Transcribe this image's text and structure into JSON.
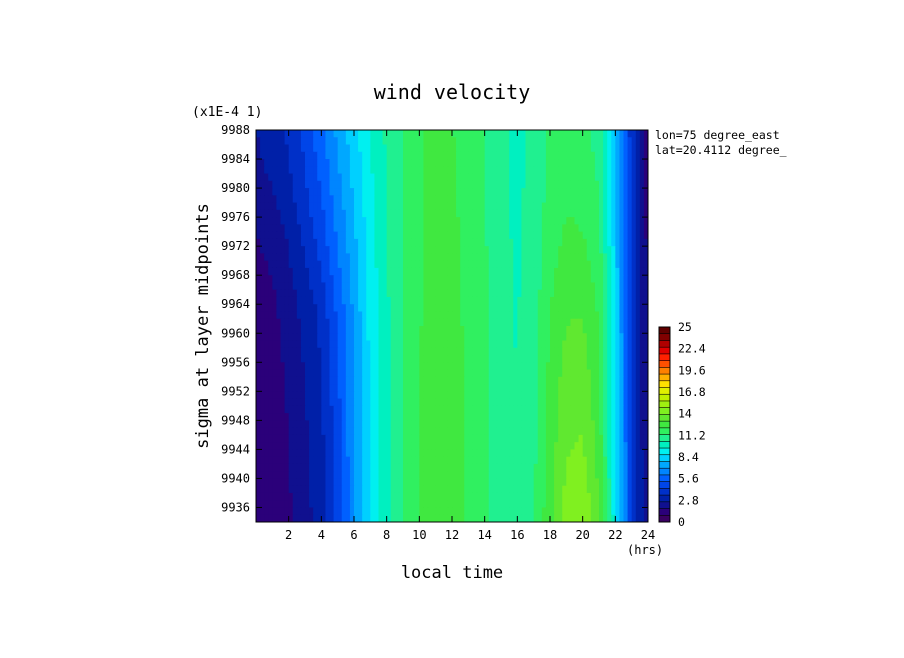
{
  "chart_data": {
    "type": "heatmap",
    "title": "wind velocity",
    "xlabel": "local time",
    "ylabel": "sigma at layer midpoints",
    "x_unit": "(hrs)",
    "y_scale_note": "(x1E-4 1)",
    "annotations": [
      "lon=75 degree_east",
      "lat=20.4112 degree_"
    ],
    "xlim": [
      0,
      24
    ],
    "ylim": [
      9988,
      9934
    ],
    "x_ticks": [
      2,
      4,
      6,
      8,
      10,
      12,
      14,
      16,
      18,
      20,
      22,
      24
    ],
    "x_tick_labels": [
      "2",
      "4",
      "6",
      "8",
      "10",
      "12",
      "14",
      "16",
      "18",
      "20",
      "22",
      "24"
    ],
    "y_ticks": [
      9936,
      9940,
      9944,
      9948,
      9952,
      9956,
      9960,
      9964,
      9968,
      9972,
      9976,
      9980,
      9984,
      9988
    ],
    "y_tick_labels": [
      "9936",
      "9940",
      "9944",
      "9948",
      "9952",
      "9956",
      "9960",
      "9964",
      "9968",
      "9972",
      "9976",
      "9980",
      "9984",
      "9988"
    ],
    "x": [
      0,
      1,
      2,
      3,
      4,
      5,
      6,
      7,
      8,
      9,
      10,
      11,
      12,
      13,
      14,
      15,
      16,
      17,
      18,
      19,
      20,
      21,
      22,
      23,
      24
    ],
    "y": [
      9934,
      9944,
      9954,
      9964,
      9972,
      9980,
      9988
    ],
    "z": [
      [
        1.0,
        1.2,
        1.6,
        2.3,
        3.0,
        4.5,
        6.8,
        8.8,
        10.2,
        11.3,
        12.1,
        12.4,
        12.3,
        12.0,
        11.4,
        10.7,
        10.3,
        11.1,
        12.7,
        14.2,
        14.6,
        13.0,
        9.0,
        4.5,
        1.5
      ],
      [
        1.0,
        1.2,
        1.7,
        2.4,
        3.2,
        4.8,
        6.8,
        8.8,
        10.2,
        11.3,
        12.1,
        12.4,
        12.3,
        12.0,
        11.4,
        10.7,
        10.3,
        11.0,
        12.5,
        13.7,
        13.9,
        12.6,
        8.8,
        4.4,
        1.5
      ],
      [
        1.1,
        1.3,
        1.9,
        2.6,
        3.4,
        5.0,
        6.9,
        8.8,
        10.2,
        11.3,
        12.1,
        12.4,
        12.3,
        12.0,
        11.4,
        10.7,
        10.3,
        10.9,
        12.3,
        13.3,
        13.4,
        12.3,
        8.6,
        4.3,
        1.5
      ],
      [
        1.3,
        1.5,
        2.2,
        2.9,
        3.8,
        5.4,
        7.1,
        8.9,
        10.2,
        11.3,
        12.0,
        12.3,
        12.3,
        11.9,
        11.3,
        10.6,
        10.3,
        10.8,
        12.0,
        12.8,
        12.8,
        11.9,
        8.4,
        4.2,
        1.5
      ],
      [
        1.6,
        2.0,
        2.6,
        3.6,
        4.6,
        6.1,
        7.5,
        9.1,
        10.3,
        11.3,
        12.0,
        12.3,
        12.2,
        11.9,
        11.3,
        10.6,
        10.2,
        10.7,
        11.7,
        12.3,
        12.2,
        11.6,
        8.2,
        4.0,
        1.4
      ],
      [
        2.2,
        2.6,
        3.2,
        4.2,
        5.2,
        6.6,
        7.9,
        9.3,
        10.4,
        11.3,
        12.0,
        12.3,
        12.2,
        11.8,
        11.2,
        10.5,
        10.2,
        10.6,
        11.5,
        11.9,
        11.7,
        11.2,
        8.0,
        3.9,
        1.4
      ],
      [
        2.6,
        3.1,
        3.6,
        4.6,
        5.8,
        7.1,
        8.3,
        9.5,
        10.5,
        11.3,
        12.0,
        12.2,
        12.1,
        11.8,
        11.2,
        10.5,
        10.1,
        10.5,
        11.3,
        11.6,
        11.4,
        10.9,
        7.8,
        3.8,
        1.4
      ]
    ],
    "colorbar": {
      "min": 0,
      "max": 25,
      "labels": [
        "25",
        "22.4",
        "19.6",
        "16.8",
        "14",
        "11.2",
        "8.4",
        "5.6",
        "2.8",
        "0"
      ],
      "colors": [
        "#3a0062",
        "#2b007a",
        "#10108f",
        "#0020a8",
        "#0030c8",
        "#0045e8",
        "#0060ff",
        "#0085ff",
        "#00a8ff",
        "#00d0ff",
        "#00f0f0",
        "#00f0c0",
        "#20f090",
        "#30f060",
        "#40e840",
        "#60e830",
        "#80f020",
        "#a0f010",
        "#c0f000",
        "#e0f000",
        "#ffe000",
        "#ffb000",
        "#ff8000",
        "#ff5000",
        "#ff2000",
        "#e00000",
        "#b00000",
        "#800000",
        "#600000"
      ]
    }
  }
}
